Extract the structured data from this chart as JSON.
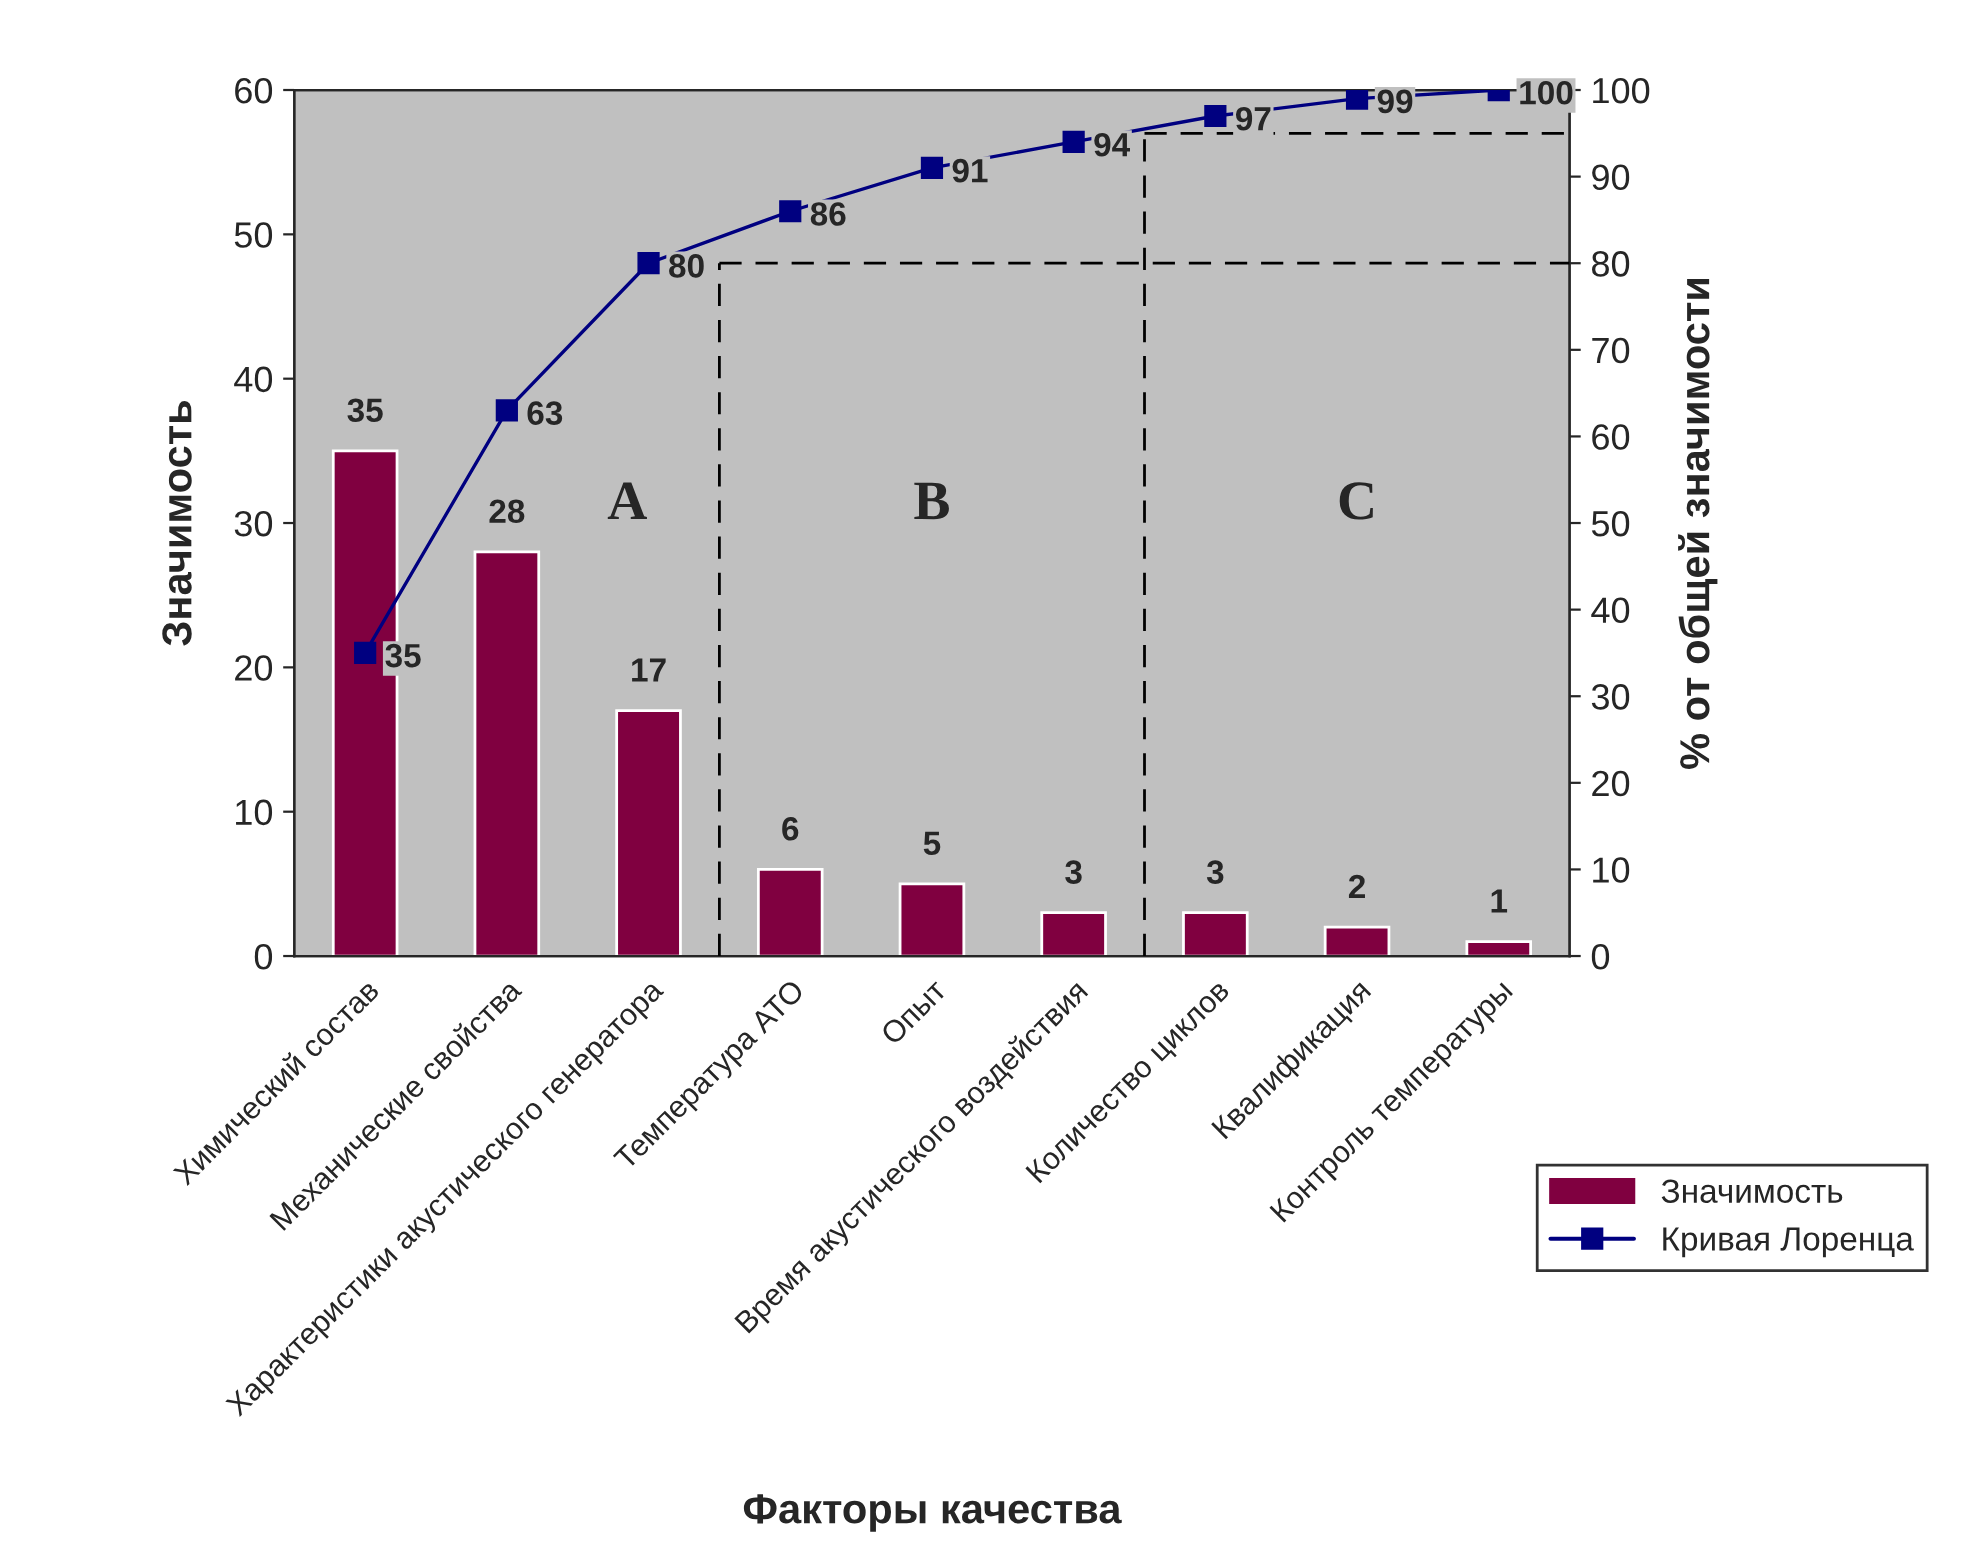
{
  "chart_data": {
    "type": "bar",
    "xlabel": "Факторы качества",
    "ylabel": "Значимость",
    "y2label": "% от общей значимости",
    "categories": [
      "Химический состав",
      "Механические свойства",
      "Характеристики акустического генератора",
      "Температура АТО",
      "Опыт",
      "Время акустического воздействия",
      "Количество циклов",
      "Квалификация",
      "Контроль температуры"
    ],
    "series": [
      {
        "name": "Значимость",
        "color": "#800040",
        "values": [
          35,
          28,
          17,
          6,
          5,
          3,
          3,
          2,
          1
        ]
      },
      {
        "name": "Кривая Лоренца",
        "type": "line",
        "axis": "y2",
        "color": "#000080",
        "marker": "square",
        "values": [
          35,
          63,
          80,
          86,
          91,
          94,
          97,
          99,
          100
        ]
      }
    ],
    "data_labels": true,
    "ylim": [
      0,
      60
    ],
    "yticks": [
      0,
      10,
      20,
      30,
      40,
      50,
      60
    ],
    "y2lim": [
      0,
      100
    ],
    "y2ticks": [
      0,
      10,
      20,
      30,
      40,
      50,
      60,
      70,
      80,
      90,
      100
    ],
    "ref_lines": [
      {
        "axis": "y2",
        "value": 80,
        "line_style": "dashed",
        "color": "#000000"
      },
      {
        "axis": "y2",
        "value": 95,
        "line_style": "dashed",
        "color": "#000000"
      }
    ],
    "annotations": [
      "A",
      "B",
      "C"
    ],
    "grid": false,
    "legend": "bottom right"
  }
}
